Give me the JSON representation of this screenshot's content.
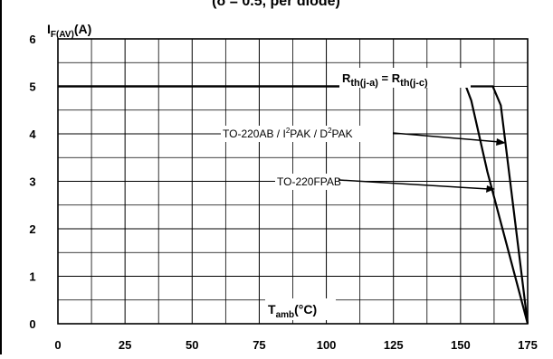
{
  "chart_data": {
    "type": "line",
    "title": "(δ = 0.5, per diode)",
    "ylabel": {
      "main": "I",
      "sub": "F(AV)",
      "unit": "(A)"
    },
    "xlabel": {
      "main": "T",
      "sub": "amb",
      "unit": "(°C)"
    },
    "xlim": [
      0,
      175
    ],
    "ylim": [
      0,
      6
    ],
    "x_ticks": [
      0,
      25,
      50,
      75,
      100,
      125,
      150,
      175
    ],
    "y_ticks": [
      0,
      1,
      2,
      3,
      4,
      5,
      6
    ],
    "x_minor_step": 12.5,
    "y_minor_step": 0.5,
    "grid": true,
    "series": [
      {
        "name": "TO-220AB / I²PAK / D²PAK",
        "x": [
          0,
          162,
          165,
          175
        ],
        "y": [
          5,
          5,
          4.6,
          0
        ]
      },
      {
        "name": "TO-220FPAB",
        "x": [
          0,
          152,
          154,
          160,
          175
        ],
        "y": [
          5,
          5,
          4.7,
          3.2,
          0
        ]
      }
    ],
    "annotations": {
      "rth_label": {
        "R1": "R",
        "s1": "th(j-a)",
        "eq": " = ",
        "R2": "R",
        "s2": "th(j-c)"
      },
      "to220ab": {
        "p1": "TO-220AB / I",
        "sup1": "2",
        "p2": "PAK / D",
        "sup2": "2",
        "p3": "PAK"
      },
      "to220fpab": "TO-220FPAB"
    }
  }
}
